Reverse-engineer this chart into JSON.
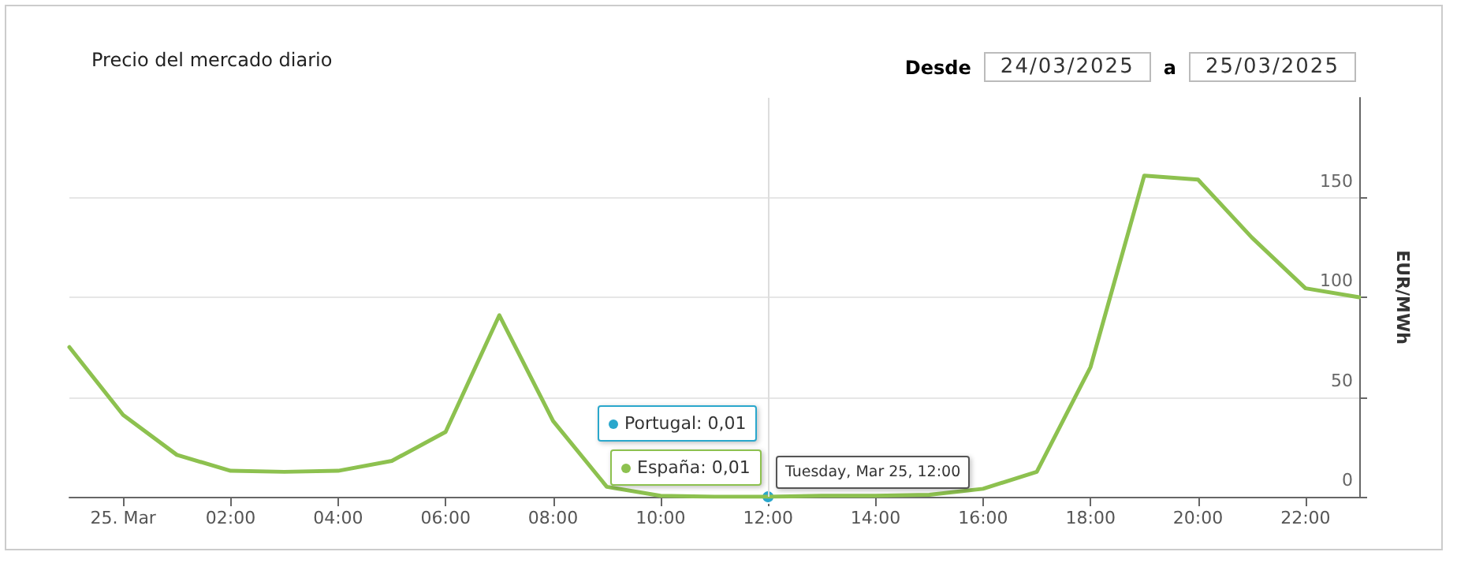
{
  "chart_data": {
    "type": "line",
    "title": "Precio del mercado diario",
    "annotations": [
      "Desde",
      "24/03/2025",
      "a",
      "25/03/2025",
      "Portugal: 0,01",
      "España: 0,01",
      "Tuesday, Mar 25, 12:00"
    ],
    "x": [
      -1,
      0,
      1,
      2,
      3,
      4,
      5,
      6,
      7,
      8,
      9,
      10,
      11,
      12,
      13,
      14,
      15,
      16,
      17,
      18,
      19,
      20,
      21,
      22,
      23
    ],
    "series": [
      {
        "color": "#2aa7cc",
        "marker": "circle",
        "values": [
          null,
          null,
          null,
          null,
          null,
          null,
          null,
          null,
          null,
          null,
          null,
          null,
          null,
          0.01,
          null,
          null,
          null,
          null,
          null,
          null,
          null,
          null,
          null,
          null,
          null
        ]
      },
      {
        "color": "#8dc14f",
        "values": [
          75,
          41,
          21,
          13,
          12.5,
          13,
          18,
          32.5,
          91,
          38,
          5,
          0.5,
          0,
          0.01,
          0.5,
          0.5,
          1,
          4,
          12.5,
          65,
          161,
          159,
          130,
          104.5,
          100
        ]
      }
    ],
    "xlim": [
      -1,
      23
    ],
    "xticks": [
      {
        "value": 0,
        "label": "25. Mar"
      },
      {
        "value": 2,
        "label": "02:00"
      },
      {
        "value": 4,
        "label": "04:00"
      },
      {
        "value": 6,
        "label": "06:00"
      },
      {
        "value": 8,
        "label": "08:00"
      },
      {
        "value": 10,
        "label": "10:00"
      },
      {
        "value": 12,
        "label": "12:00"
      },
      {
        "value": 14,
        "label": "14:00"
      },
      {
        "value": 16,
        "label": "16:00"
      },
      {
        "value": 18,
        "label": "18:00"
      },
      {
        "value": 20,
        "label": "20:00"
      },
      {
        "value": 22,
        "label": "22:00"
      }
    ],
    "ylim": [
      0,
      200
    ],
    "yticks": [
      0,
      50,
      100,
      150
    ],
    "ylabel": "EUR/MWh",
    "ref_lines": [
      {
        "axis": "x",
        "value": 12,
        "color": "#dddddd"
      }
    ],
    "grid": "y",
    "marker": "none",
    "line_style": "solid"
  }
}
